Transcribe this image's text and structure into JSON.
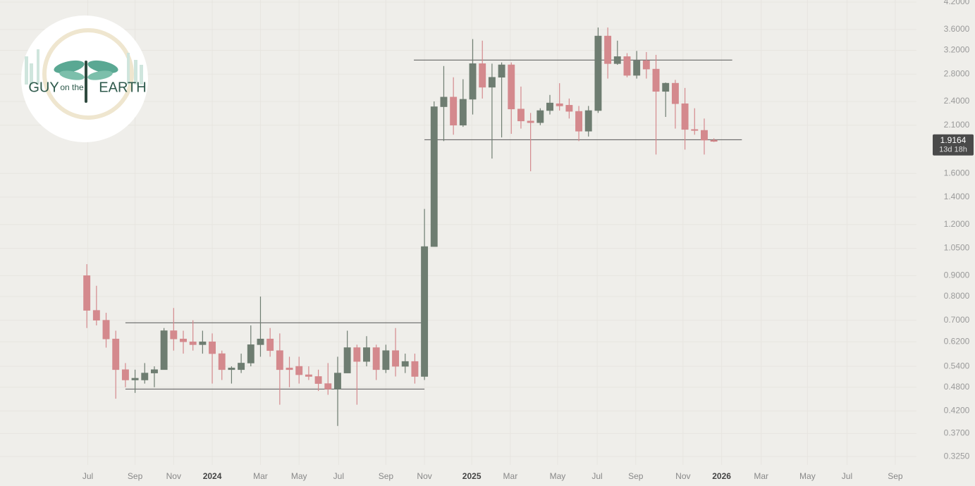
{
  "chart_data": {
    "type": "candlestick",
    "log_scale": true,
    "grid": true,
    "up_color": "#6e7d71",
    "down_color": "#d4898d",
    "line_color": "#555555",
    "xlim": [
      -9,
      86
    ],
    "ylim": [
      0.31,
      4.25
    ],
    "xticks": [
      {
        "value": 0.1,
        "label": "Jul"
      },
      {
        "value": 5.0,
        "label": "Sep"
      },
      {
        "value": 9.0,
        "label": "Nov"
      },
      {
        "value": 13.0,
        "label": "2024"
      },
      {
        "value": 18.0,
        "label": "Mar"
      },
      {
        "value": 22.0,
        "label": "May"
      },
      {
        "value": 26.1,
        "label": "Jul"
      },
      {
        "value": 31.0,
        "label": "Sep"
      },
      {
        "value": 35.0,
        "label": "Nov"
      },
      {
        "value": 39.9,
        "label": "2025"
      },
      {
        "value": 43.9,
        "label": "Mar"
      },
      {
        "value": 48.8,
        "label": "May"
      },
      {
        "value": 52.9,
        "label": "Jul"
      },
      {
        "value": 56.9,
        "label": "Sep"
      },
      {
        "value": 61.8,
        "label": "Nov"
      },
      {
        "value": 65.8,
        "label": "2026"
      },
      {
        "value": 69.9,
        "label": "Mar"
      },
      {
        "value": 74.7,
        "label": "May"
      },
      {
        "value": 78.8,
        "label": "Jul"
      },
      {
        "value": 83.8,
        "label": "Sep"
      }
    ],
    "yticks": [
      {
        "value": 4.2,
        "label": "4.2000"
      },
      {
        "value": 3.6,
        "label": "3.6000"
      },
      {
        "value": 3.2,
        "label": "3.2000"
      },
      {
        "value": 2.8,
        "label": "2.8000"
      },
      {
        "value": 2.4,
        "label": "2.4000"
      },
      {
        "value": 2.1,
        "label": "2.1000"
      },
      {
        "value": 1.6,
        "label": "1.6000"
      },
      {
        "value": 1.4,
        "label": "1.4000"
      },
      {
        "value": 1.2,
        "label": "1.2000"
      },
      {
        "value": 1.05,
        "label": "1.0500"
      },
      {
        "value": 0.9,
        "label": "0.9000"
      },
      {
        "value": 0.8,
        "label": "0.8000"
      },
      {
        "value": 0.7,
        "label": "0.7000"
      },
      {
        "value": 0.62,
        "label": "0.6200"
      },
      {
        "value": 0.54,
        "label": "0.5400"
      },
      {
        "value": 0.48,
        "label": "0.4800"
      },
      {
        "value": 0.42,
        "label": "0.4200"
      },
      {
        "value": 0.37,
        "label": "0.3700"
      },
      {
        "value": 0.325,
        "label": "0.3250"
      }
    ],
    "x": [
      0,
      1,
      2,
      3,
      4,
      5,
      6,
      7,
      8,
      9,
      10,
      11,
      12,
      13,
      14,
      15,
      16,
      17,
      18,
      19,
      20,
      21,
      22,
      23,
      24,
      25,
      26,
      27,
      28,
      29,
      30,
      31,
      32,
      33,
      34,
      35,
      36,
      37,
      38,
      39,
      40,
      41,
      42,
      43,
      44,
      45,
      46,
      47,
      48,
      49,
      50,
      51,
      52,
      53,
      54,
      55,
      56,
      57,
      58,
      59,
      60,
      61,
      62,
      63,
      64,
      65
    ],
    "open": [
      0.9,
      0.74,
      0.7,
      0.63,
      0.53,
      0.5,
      0.5,
      0.52,
      0.53,
      0.66,
      0.63,
      0.62,
      0.61,
      0.62,
      0.58,
      0.53,
      0.53,
      0.55,
      0.61,
      0.63,
      0.59,
      0.535,
      0.54,
      0.515,
      0.51,
      0.49,
      0.475,
      0.52,
      0.6,
      0.555,
      0.6,
      0.53,
      0.59,
      0.54,
      0.555,
      0.51,
      1.06,
      2.33,
      2.46,
      2.1,
      2.43,
      2.97,
      2.6,
      2.75,
      2.95,
      2.3,
      2.15,
      2.13,
      2.28,
      2.37,
      2.35,
      2.27,
      2.03,
      2.28,
      3.47,
      2.97,
      3.09,
      2.78,
      3.02,
      2.88,
      2.54,
      2.66,
      2.37,
      2.05,
      2.04,
      1.93
    ],
    "high": [
      0.96,
      0.85,
      0.73,
      0.66,
      0.55,
      0.53,
      0.55,
      0.54,
      0.67,
      0.75,
      0.66,
      0.7,
      0.66,
      0.65,
      0.59,
      0.54,
      0.58,
      0.68,
      0.8,
      0.67,
      0.65,
      0.57,
      0.57,
      0.54,
      0.53,
      0.55,
      0.57,
      0.66,
      0.61,
      0.64,
      0.61,
      0.61,
      0.67,
      0.58,
      0.58,
      1.31,
      2.4,
      2.93,
      2.75,
      2.72,
      3.41,
      3.38,
      2.97,
      2.99,
      2.99,
      2.61,
      2.25,
      2.31,
      2.49,
      2.66,
      2.44,
      2.34,
      2.34,
      3.64,
      3.64,
      3.38,
      3.15,
      3.19,
      3.17,
      3.12,
      2.67,
      2.71,
      2.59,
      2.31,
      2.18,
      1.95
    ],
    "low": [
      0.67,
      0.68,
      0.6,
      0.45,
      0.48,
      0.465,
      0.49,
      0.48,
      0.53,
      0.59,
      0.58,
      0.59,
      0.58,
      0.49,
      0.5,
      0.49,
      0.52,
      0.54,
      0.57,
      0.57,
      0.435,
      0.48,
      0.49,
      0.5,
      0.47,
      0.46,
      0.386,
      0.52,
      0.435,
      0.54,
      0.5,
      0.52,
      0.51,
      0.52,
      0.49,
      0.5,
      1.06,
      1.92,
      1.99,
      2.08,
      2.23,
      2.44,
      1.74,
      1.96,
      2.0,
      2.06,
      1.62,
      2.1,
      2.23,
      2.28,
      2.18,
      1.92,
      1.97,
      2.25,
      2.73,
      2.95,
      2.75,
      2.73,
      2.73,
      1.78,
      2.2,
      2.06,
      1.83,
      1.99,
      1.78,
      1.91
    ],
    "close": [
      0.74,
      0.7,
      0.63,
      0.53,
      0.5,
      0.505,
      0.52,
      0.53,
      0.66,
      0.63,
      0.62,
      0.61,
      0.62,
      0.58,
      0.53,
      0.535,
      0.55,
      0.61,
      0.63,
      0.59,
      0.53,
      0.53,
      0.515,
      0.51,
      0.49,
      0.475,
      0.52,
      0.6,
      0.555,
      0.6,
      0.53,
      0.59,
      0.54,
      0.555,
      0.51,
      1.06,
      2.33,
      2.46,
      2.1,
      2.43,
      2.97,
      2.6,
      2.75,
      2.95,
      2.3,
      2.15,
      2.13,
      2.28,
      2.38,
      2.34,
      2.27,
      2.03,
      2.28,
      3.47,
      2.97,
      3.09,
      2.78,
      3.02,
      2.88,
      2.54,
      2.66,
      2.37,
      2.05,
      2.04,
      1.93,
      1.9164
    ],
    "hlines": [
      {
        "value": 0.69,
        "from": 4.0,
        "to": 34.7
      },
      {
        "value": 0.475,
        "from": 4.0,
        "to": 35.0
      },
      {
        "value": 3.03,
        "from": 33.9,
        "to": 66.9
      },
      {
        "value": 1.935,
        "from": 35.0,
        "to": 67.9
      }
    ],
    "last_price": 1.9164,
    "countdown": "13d 18h"
  },
  "logo": {
    "left": "GUY",
    "middle": "on the",
    "right": "EARTH"
  }
}
